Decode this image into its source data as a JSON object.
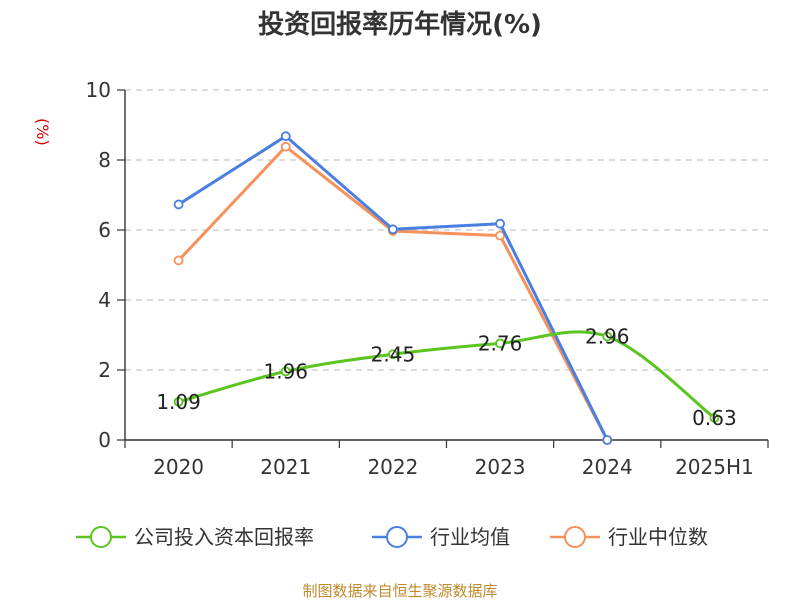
{
  "chart_data": {
    "type": "line",
    "title": "投资回报率历年情况(%)",
    "ylabel": "(%)",
    "xlabel": "",
    "categories": [
      "2020",
      "2021",
      "2022",
      "2023",
      "2024",
      "2025H1"
    ],
    "ylim": [
      0,
      10
    ],
    "yticks": [
      0,
      2,
      4,
      6,
      8,
      10
    ],
    "grid": true,
    "legend_position": "bottom",
    "series": [
      {
        "name": "公司投入资本回报率",
        "color": "#5bc41e",
        "values": [
          1.09,
          1.96,
          2.45,
          2.76,
          2.96,
          0.63
        ],
        "labels": [
          "1.09",
          "1.96",
          "2.45",
          "2.76",
          "2.96",
          "0.63"
        ]
      },
      {
        "name": "行业均值",
        "color": "#4a7fe0",
        "values": [
          6.73,
          8.68,
          6.02,
          6.18,
          0.0,
          null
        ]
      },
      {
        "name": "行业中位数",
        "color": "#f5915a",
        "values": [
          5.13,
          8.38,
          5.97,
          5.84,
          0.0,
          null
        ]
      }
    ]
  },
  "source": "制图数据来自恒生聚源数据库"
}
